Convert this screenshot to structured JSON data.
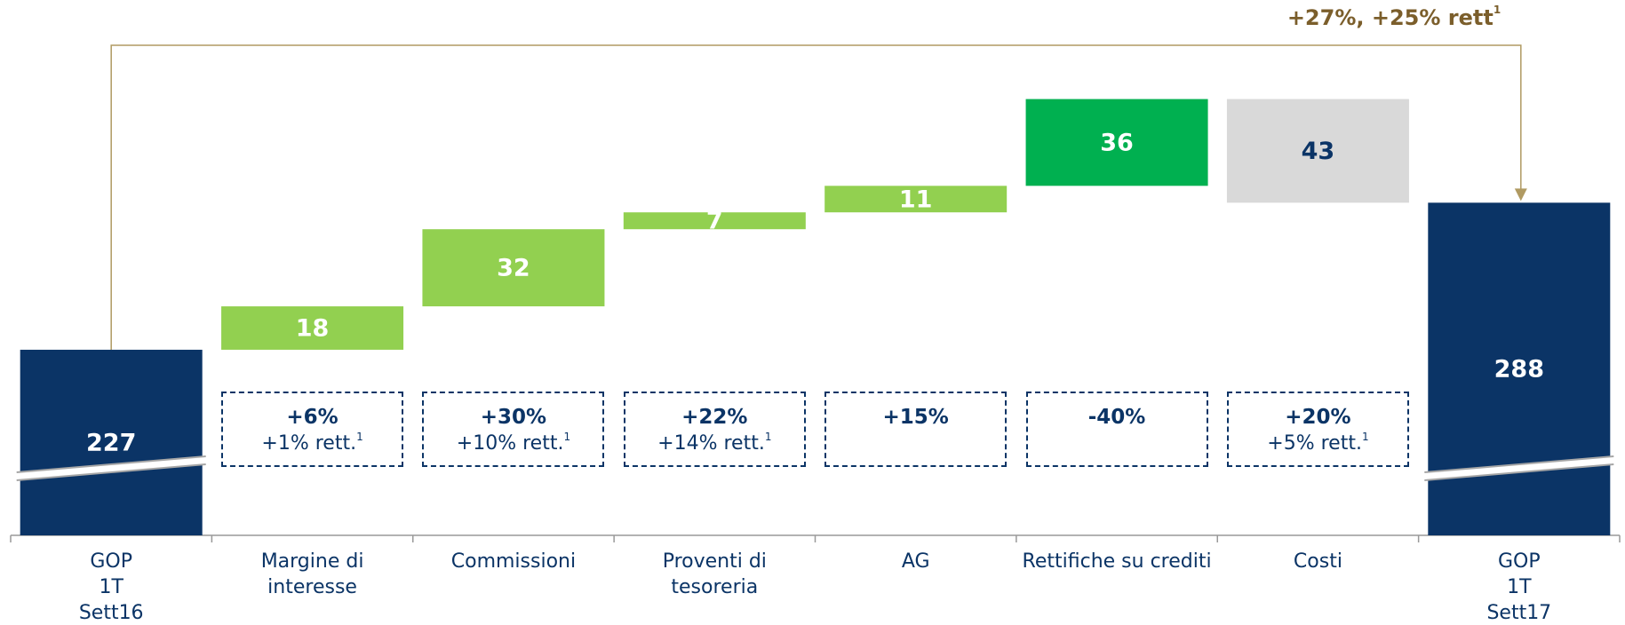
{
  "chart_data": {
    "type": "waterfall",
    "categories": [
      "GOP\n1T\nSett16",
      "Margine di\ninteresse",
      "Commissioni",
      "Proventi di\ntesoreria",
      "AG",
      "Rettifiche su crediti",
      "Costi",
      "GOP\n1T\nSett17"
    ],
    "values": [
      227,
      18,
      32,
      7,
      11,
      36,
      43,
      288
    ],
    "kinds": [
      "total",
      "increase",
      "increase",
      "increase",
      "increase",
      "increase",
      "decrease",
      "total"
    ],
    "colors": [
      "#0b3466",
      "#92d050",
      "#92d050",
      "#92d050",
      "#92d050",
      "#00b050",
      "#d9d9d9",
      "#0b3466"
    ],
    "label_colors": [
      "#ffffff",
      "#ffffff",
      "#ffffff",
      "#ffffff",
      "#ffffff",
      "#ffffff",
      "#0b3466",
      "#ffffff"
    ],
    "ylim": [
      150,
      350
    ],
    "broken_axis": true,
    "changes": [
      null,
      {
        "main": "+6%",
        "sub": "+1% rett.",
        "sup": "1"
      },
      {
        "main": "+30%",
        "sub": "+10% rett.",
        "sup": "1"
      },
      {
        "main": "+22%",
        "sub": "+14% rett.",
        "sup": "1"
      },
      {
        "main": "+15%"
      },
      {
        "main": "-40%"
      },
      {
        "main": "+20%",
        "sub": "+5% rett.",
        "sup": "1"
      },
      null
    ],
    "total_change": {
      "text": "+27%, +25% rett",
      "sup": "1"
    }
  }
}
